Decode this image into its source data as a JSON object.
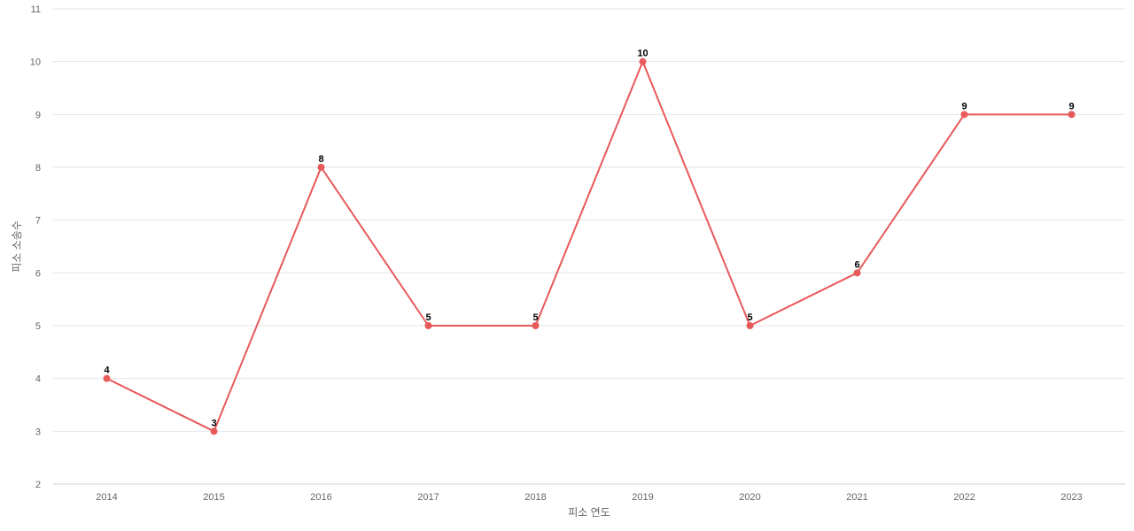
{
  "chart_data": {
    "type": "line",
    "categories": [
      "2014",
      "2015",
      "2016",
      "2017",
      "2018",
      "2019",
      "2020",
      "2021",
      "2022",
      "2023"
    ],
    "series": [
      {
        "values": [
          4,
          3,
          8,
          5,
          5,
          10,
          5,
          6,
          9,
          9
        ]
      }
    ],
    "xlabel": "피소 연도",
    "ylabel": "피소 소송수",
    "ylim": [
      2,
      11
    ],
    "yticks": [
      2,
      3,
      4,
      5,
      6,
      7,
      8,
      9,
      10,
      11
    ],
    "grid": true,
    "data_labels": true,
    "colors": {
      "line": "#e8595a",
      "grid": "#e6e6e6",
      "axis": "#d0d0d0"
    }
  }
}
